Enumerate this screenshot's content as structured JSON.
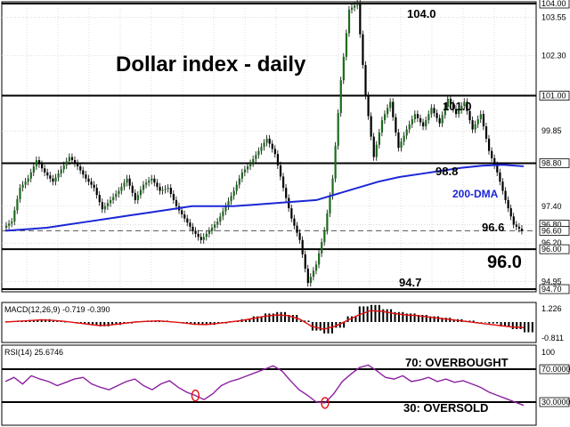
{
  "chart_data": [
    {
      "type": "line",
      "title": "Dollar index - daily",
      "ylim": [
        94.7,
        104.0
      ],
      "y_axis_ticks": [
        "104.00",
        "103.55",
        "102.30",
        "101.00",
        "99.85",
        "98.80",
        "97.40",
        "96.80",
        "96.60",
        "96.20",
        "96.00",
        "94.95",
        "94.70"
      ],
      "grid": true,
      "levels": [
        {
          "value": 104.0,
          "label": "104.0"
        },
        {
          "value": 101.0,
          "label": "101.0"
        },
        {
          "value": 98.8,
          "label": "98.8"
        },
        {
          "value": 96.0,
          "label": "96.0"
        },
        {
          "value": 94.7,
          "label": "94.7"
        }
      ],
      "dashed_level": {
        "value": 96.6,
        "label": "96.6"
      },
      "series": [
        {
          "name": "200-DMA",
          "values": [
            96.6,
            96.65,
            96.7,
            96.8,
            96.9,
            97.0,
            97.1,
            97.2,
            97.3,
            97.4,
            97.4,
            97.4,
            97.45,
            97.5,
            97.55,
            97.6,
            97.8,
            98.0,
            98.2,
            98.35,
            98.45,
            98.55,
            98.65,
            98.72,
            98.75,
            98.7
          ]
        },
        {
          "name": "price",
          "values": [
            96.7,
            96.9,
            98.0,
            98.3,
            98.9,
            98.5,
            98.2,
            98.6,
            99.0,
            98.7,
            98.3,
            98.0,
            97.3,
            97.6,
            97.9,
            98.3,
            97.6,
            98.1,
            98.3,
            97.9,
            98.0,
            97.4,
            97.0,
            96.6,
            96.3,
            96.6,
            96.9,
            97.4,
            97.9,
            98.5,
            98.8,
            99.2,
            99.6,
            99.1,
            98.0,
            97.0,
            96.3,
            94.9,
            95.5,
            96.6,
            98.3,
            101.5,
            103.8,
            104.0,
            101.0,
            99.0,
            100.2,
            100.8,
            99.3,
            99.9,
            100.4,
            100.0,
            100.6,
            100.1,
            100.9,
            100.4,
            100.8,
            99.9,
            100.4,
            99.2,
            98.5,
            97.6,
            96.8,
            96.6
          ]
        }
      ]
    },
    {
      "type": "line",
      "title": "MACD(12,26,9) -0.719 -0.390",
      "y_axis_ticks": [
        "1.226",
        "-0.811"
      ],
      "histogram": [
        0.05,
        0.1,
        0.15,
        0.2,
        0.1,
        0.0,
        -0.1,
        -0.2,
        -0.3,
        -0.2,
        -0.1,
        0.05,
        0.1,
        0.1,
        0.0,
        -0.1,
        -0.2,
        -0.2,
        -0.1,
        0.05,
        0.2,
        0.4,
        0.6,
        0.7,
        0.5,
        0.1,
        -0.6,
        -0.8,
        -0.4,
        0.4,
        1.1,
        1.2,
        0.9,
        0.7,
        0.6,
        0.5,
        0.4,
        0.3,
        0.2,
        0.1,
        0.0,
        -0.1,
        -0.3,
        -0.5,
        -0.72
      ],
      "signal": [
        0.0,
        0.05,
        0.1,
        0.15,
        0.12,
        0.05,
        -0.05,
        -0.15,
        -0.25,
        -0.2,
        -0.1,
        0.0,
        0.05,
        0.08,
        0.02,
        -0.05,
        -0.15,
        -0.18,
        -0.1,
        0.0,
        0.1,
        0.25,
        0.4,
        0.5,
        0.45,
        0.2,
        -0.3,
        -0.5,
        -0.3,
        0.1,
        0.5,
        0.8,
        0.75,
        0.6,
        0.5,
        0.45,
        0.35,
        0.25,
        0.15,
        0.05,
        -0.05,
        -0.15,
        -0.25,
        -0.35,
        -0.39
      ]
    },
    {
      "type": "line",
      "title": "RSI(14) 25.6746",
      "y_axis_ticks": [
        "100",
        "70.0000",
        "30.0000"
      ],
      "levels": [
        {
          "value": 70,
          "label": "70: OVERBOUGHT"
        },
        {
          "value": 30,
          "label": "30: OVERSOLD"
        }
      ],
      "series": [
        {
          "name": "RSI",
          "values": [
            55,
            60,
            52,
            62,
            58,
            55,
            50,
            54,
            58,
            60,
            52,
            48,
            45,
            50,
            55,
            58,
            50,
            45,
            52,
            56,
            48,
            42,
            38,
            33,
            40,
            50,
            55,
            58,
            62,
            66,
            70,
            74,
            68,
            56,
            45,
            38,
            30,
            29,
            40,
            55,
            64,
            72,
            75,
            68,
            60,
            58,
            62,
            55,
            57,
            60,
            55,
            58,
            54,
            56,
            52,
            48,
            42,
            38,
            34,
            30,
            26
          ]
        }
      ]
    }
  ],
  "annotations": {
    "label_200dma": "200-DMA",
    "label_96_0_big": "96.0",
    "label_96_6": "96.6"
  },
  "colors": {
    "price": "#000000",
    "up_candle": "#1d6b1d",
    "dma": "#1b27d6",
    "signal": "#e01010",
    "histogram": "#000000",
    "rsi": "#8b1fa0",
    "oversold_mark": "#e01010",
    "grid": "#d0d0d0"
  }
}
